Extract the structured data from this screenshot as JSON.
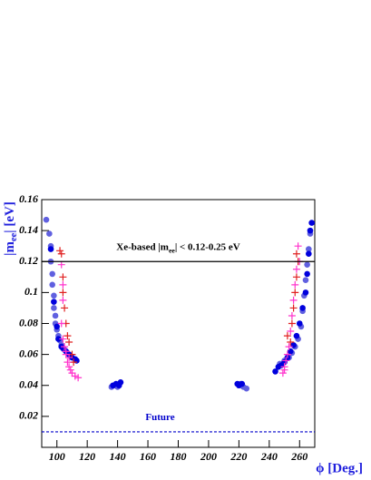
{
  "chart_data": {
    "type": "scatter",
    "y_label": [
      "|m",
      "ee",
      "| [eV]"
    ],
    "x_label": "ϕ [Deg.]",
    "xlim": [
      90,
      270
    ],
    "xticks": [
      100,
      120,
      140,
      160,
      180,
      200,
      220,
      240,
      260
    ],
    "ylim": [
      0,
      0.16
    ],
    "yticks": [
      0.02,
      0.04,
      0.06,
      0.08,
      0.1,
      0.12,
      0.14,
      0.16
    ],
    "hlines": [
      {
        "value": 0.12,
        "color": "#000000",
        "dashed": false,
        "label": [
          "Xe-based |m",
          "ee",
          "| < 0.12-0.25 eV"
        ]
      },
      {
        "value": 0.01,
        "color": "#0000cc",
        "dashed": true,
        "label": [
          "Future"
        ]
      }
    ],
    "series": [
      {
        "color": "#6060e0",
        "marker": "circle",
        "x": [
          93,
          95,
          96,
          96,
          97,
          97,
          98,
          98,
          99,
          99,
          100,
          101,
          102,
          103,
          105,
          107,
          109,
          136,
          138,
          140,
          221,
          223,
          225,
          247,
          250,
          253,
          255,
          257,
          259,
          261,
          262,
          263,
          264,
          265,
          266,
          267
        ],
        "y": [
          0.147,
          0.138,
          0.13,
          0.12,
          0.112,
          0.105,
          0.098,
          0.09,
          0.085,
          0.08,
          0.076,
          0.072,
          0.069,
          0.066,
          0.063,
          0.061,
          0.059,
          0.039,
          0.04,
          0.039,
          0.041,
          0.039,
          0.038,
          0.054,
          0.056,
          0.058,
          0.061,
          0.065,
          0.07,
          0.078,
          0.088,
          0.098,
          0.108,
          0.118,
          0.128,
          0.138
        ]
      },
      {
        "color": "#0000dd",
        "marker": "circle",
        "x": [
          96,
          98,
          100,
          101,
          103,
          104,
          106,
          108,
          110,
          112,
          113,
          137,
          139,
          141,
          142,
          219,
          220,
          222,
          244,
          246,
          248,
          250,
          252,
          254,
          256,
          258,
          260,
          262,
          264,
          265,
          266,
          267,
          268
        ],
        "y": [
          0.128,
          0.094,
          0.078,
          0.07,
          0.065,
          0.064,
          0.062,
          0.06,
          0.058,
          0.057,
          0.056,
          0.04,
          0.041,
          0.04,
          0.042,
          0.041,
          0.04,
          0.041,
          0.049,
          0.052,
          0.053,
          0.055,
          0.058,
          0.062,
          0.066,
          0.072,
          0.08,
          0.09,
          0.1,
          0.112,
          0.125,
          0.14,
          0.145
        ]
      },
      {
        "color": "#e02020",
        "marker": "plus",
        "x": [
          102,
          103,
          104,
          104,
          105,
          106,
          107,
          108,
          110,
          111,
          252,
          254,
          255,
          256,
          257,
          258,
          258,
          259
        ],
        "y": [
          0.127,
          0.125,
          0.11,
          0.1,
          0.09,
          0.08,
          0.072,
          0.068,
          0.06,
          0.055,
          0.072,
          0.068,
          0.08,
          0.09,
          0.1,
          0.11,
          0.125,
          0.12
        ]
      },
      {
        "color": "#ff33cc",
        "marker": "plus",
        "x": [
          103,
          104,
          104,
          103,
          104,
          105,
          106,
          106,
          107,
          108,
          108,
          109,
          110,
          112,
          114,
          249,
          250,
          250,
          251,
          252,
          253,
          254,
          255,
          256,
          257,
          258,
          259,
          260
        ],
        "y": [
          0.118,
          0.105,
          0.095,
          0.08,
          0.07,
          0.065,
          0.062,
          0.06,
          0.055,
          0.058,
          0.052,
          0.05,
          0.048,
          0.046,
          0.045,
          0.048,
          0.05,
          0.052,
          0.056,
          0.06,
          0.065,
          0.075,
          0.085,
          0.095,
          0.105,
          0.115,
          0.13,
          0.12
        ]
      }
    ]
  }
}
